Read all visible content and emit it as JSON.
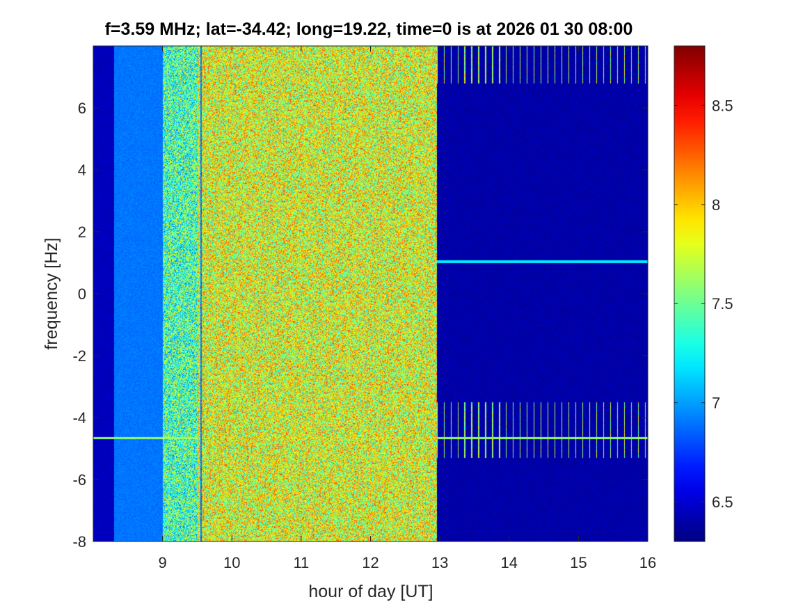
{
  "chart_data": [
    {
      "type": "heatmap",
      "title": "f=3.59 MHz;  lat=-34.42; long=19.22, time=0 is at 2026 01 30 08:00",
      "xlabel": "hour of day [UT]",
      "ylabel": "frequency [Hz]",
      "xlim": [
        8.0,
        16.0
      ],
      "ylim": [
        -8,
        8
      ],
      "x_ticks": [
        9,
        10,
        11,
        12,
        13,
        14,
        15,
        16
      ],
      "x_tick_labels": [
        "9",
        "10",
        "11",
        "12",
        "13",
        "14",
        "15",
        "16"
      ],
      "y_ticks": [
        -8,
        -6,
        -4,
        -2,
        0,
        2,
        4,
        6
      ],
      "y_tick_labels": [
        "-8",
        "-6",
        "-4",
        "-2",
        "0",
        "2",
        "4",
        "6"
      ],
      "colormap": "jet",
      "colorbar": {
        "limits": [
          6.3,
          8.8
        ],
        "ticks": [
          6.5,
          7,
          7.5,
          8,
          8.5
        ],
        "tick_labels": [
          "6.5",
          "7",
          "7.5",
          "8",
          "8.5"
        ]
      },
      "regions": [
        {
          "hours": [
            8.0,
            8.3
          ],
          "frequency_Hz": [
            -8,
            8
          ],
          "level": 6.45,
          "description": "low background with faint noise"
        },
        {
          "hours": [
            8.3,
            9.0
          ],
          "frequency_Hz": [
            -8,
            8
          ],
          "level": 6.9,
          "description": "transition, mostly blue/cyan noise"
        },
        {
          "hours": [
            9.0,
            9.5
          ],
          "frequency_Hz": [
            -8,
            8
          ],
          "level": 7.4,
          "description": "cyan-green noise"
        },
        {
          "hours": [
            9.5,
            12.95
          ],
          "frequency_Hz": [
            -8,
            8
          ],
          "level": 7.8,
          "description": "broadband yellow-orange noise"
        },
        {
          "hours": [
            12.95,
            16.0
          ],
          "frequency_Hz": [
            -8,
            8
          ],
          "level": 6.4,
          "description": "quiet background with periodic vertical spikes"
        }
      ],
      "features": [
        {
          "type": "horizontal_line",
          "frequency_Hz": 1.05,
          "hours": [
            12.95,
            16.0
          ],
          "level": 7.2
        },
        {
          "type": "horizontal_line",
          "frequency_Hz": -4.65,
          "hours": [
            8.0,
            16.0
          ],
          "level": 7.6
        },
        {
          "type": "vertical_line",
          "hour": 9.55,
          "level": 6.9
        },
        {
          "type": "periodic_spikes",
          "hours": [
            12.95,
            16.0
          ],
          "spacing_hours": 0.1,
          "frequency_bands_Hz": [
            [
              -5.3,
              -3.5
            ],
            [
              6.8,
              8.0
            ]
          ],
          "level": 7.5
        }
      ]
    }
  ]
}
